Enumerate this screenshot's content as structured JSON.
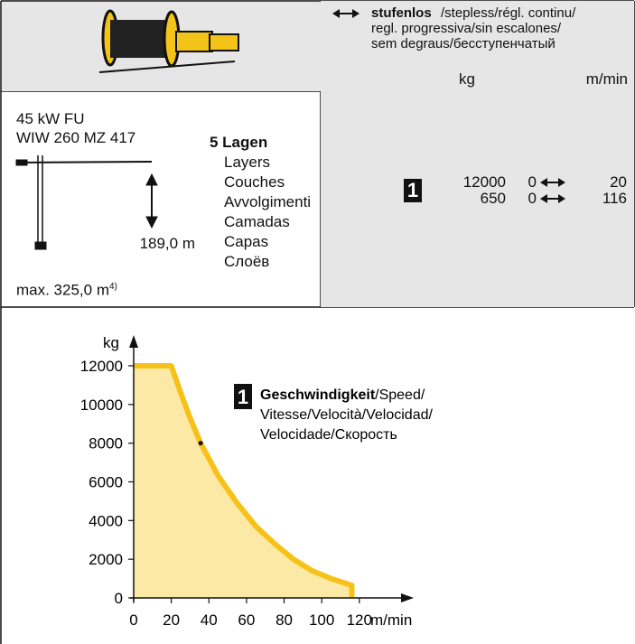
{
  "header": {
    "direction_label": "stufenlos",
    "direction_translations": [
      "/stepless/régl. continu/",
      "regl. progressiva/sin escalones/",
      "sem degraus/бесступенчатый"
    ],
    "units": [
      "kg",
      "m/min"
    ]
  },
  "spec": {
    "power": "45 kW FU",
    "model": "WIW 260 MZ 417",
    "height": "189,0 m",
    "max": "max. 325,0 m",
    "max_note": "4)",
    "layers_title": "5 Lagen",
    "layers": [
      "Layers",
      "Couches",
      "Avvolgimenti",
      "Camadas",
      "Capas",
      "Слоёв"
    ],
    "gear": "1",
    "rows": [
      {
        "load": "12000",
        "speed_min": "0",
        "speed_max": "20"
      },
      {
        "load": "650",
        "speed_min": "0",
        "speed_max": "116"
      }
    ]
  },
  "chart_data": {
    "type": "area",
    "x": [
      0,
      20,
      25,
      30,
      35.6,
      45,
      55,
      65,
      75,
      85,
      95,
      105,
      116,
      116
    ],
    "values": [
      12000,
      12000,
      10600,
      9300,
      8000,
      6300,
      4900,
      3700,
      2800,
      2000,
      1400,
      1000,
      650,
      0
    ],
    "fill_color": "#fde9a6",
    "line_color": "#f6c21a",
    "xlim": [
      0,
      147
    ],
    "ylim": [
      0,
      13400
    ],
    "xticks": [
      0,
      20,
      40,
      60,
      80,
      100,
      120
    ],
    "yticks": [
      0,
      2000,
      4000,
      6000,
      8000,
      10000,
      12000
    ],
    "xlabel": "m/min",
    "ylabel": "kg",
    "annotation": {
      "badge": "1",
      "title": "Geschwindigkeit",
      "lines": [
        "/Speed/",
        "Vitesse/Velocità/Velocidad/",
        "Velocidade/Скорость"
      ]
    }
  }
}
